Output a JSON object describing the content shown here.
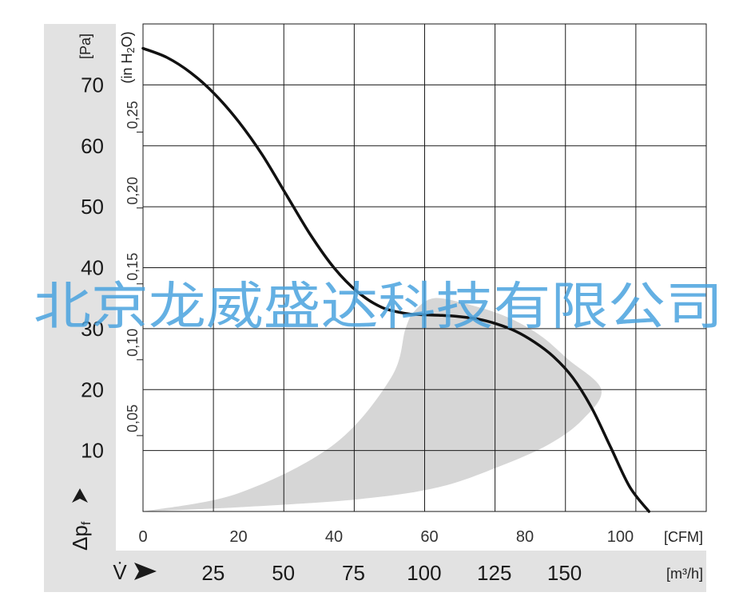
{
  "chart_data": {
    "type": "line",
    "colors": {
      "panel": "#e2e2e2",
      "grid": "#1a1a1a",
      "curve": "#111111",
      "band": "#d6d6d6",
      "watermark": "#4aa3df"
    },
    "y_axis": {
      "label": "Δp",
      "label_subscript": "f",
      "unit": "[Pa]",
      "ticks": [
        10,
        20,
        30,
        40,
        50,
        60,
        70
      ],
      "range": [
        0,
        80
      ]
    },
    "y_axis_secondary": {
      "unit": "(in H",
      "unit_subscript": "2",
      "unit_end": "O)",
      "ticks": [
        "0,05",
        "0,10",
        "0,15",
        "0,20",
        "0,25"
      ],
      "tick_values_pa": [
        12.45,
        24.9,
        37.35,
        49.8,
        62.25
      ]
    },
    "x_axis": {
      "unit": "[CFM]",
      "ticks": [
        0,
        20,
        40,
        60,
        80,
        100
      ],
      "range": [
        0,
        118
      ],
      "grid_lines": [
        0,
        14.75,
        29.5,
        44.25,
        59,
        73.75,
        88.5,
        103.25,
        118
      ]
    },
    "x_axis_secondary": {
      "label": "V̇",
      "unit": "[m³/h]",
      "ticks": [
        "25",
        "50",
        "75",
        "100",
        "125",
        "150"
      ],
      "tick_values_cfm": [
        14.7,
        29.4,
        44.1,
        58.9,
        73.6,
        88.3
      ]
    },
    "series": [
      {
        "x": [
          0,
          5,
          10,
          15,
          20,
          25,
          30,
          35,
          40,
          45,
          50,
          55,
          58,
          62,
          66,
          70,
          74,
          78,
          82,
          86,
          90,
          94,
          98,
          102,
          106
        ],
        "y": [
          76,
          74.5,
          72,
          68.5,
          64,
          58.5,
          52,
          45.5,
          40,
          36,
          33.5,
          32.5,
          32.3,
          32.2,
          32,
          31.6,
          30.8,
          29.6,
          27.8,
          25.4,
          22,
          17,
          10.5,
          4,
          0
        ]
      }
    ],
    "operating_band": {
      "upper": [
        [
          0,
          0
        ],
        [
          20,
          3
        ],
        [
          40,
          11
        ],
        [
          52,
          22
        ],
        [
          55,
          30
        ],
        [
          57,
          33
        ],
        [
          61,
          35
        ],
        [
          68,
          34
        ],
        [
          76,
          32
        ],
        [
          83,
          29
        ],
        [
          89,
          25
        ],
        [
          96,
          20
        ]
      ],
      "lower": [
        [
          96,
          20
        ],
        [
          92,
          15
        ],
        [
          85,
          11
        ],
        [
          75,
          7.5
        ],
        [
          62,
          4
        ],
        [
          45,
          2
        ],
        [
          20,
          0.7
        ],
        [
          0,
          0
        ]
      ]
    },
    "watermark": "北京龙威盛达科技有限公司"
  }
}
